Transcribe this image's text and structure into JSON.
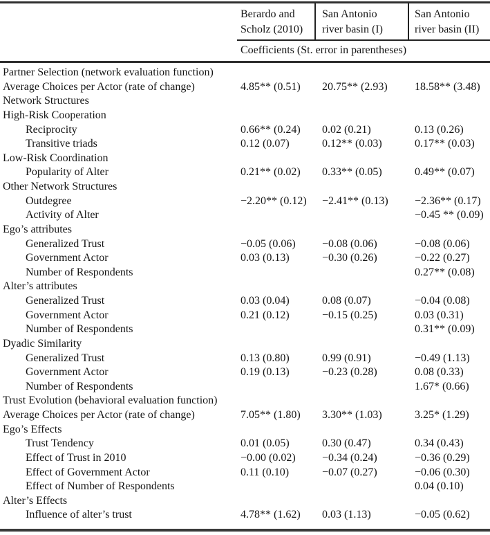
{
  "table": {
    "header": {
      "col1": "Berardo and\nScholz (2010)",
      "col2": "San Antonio\nriver basin (I)",
      "col3": "San Antonio\nriver basin (II)",
      "subheader": "Coefficients (St. error in parentheses)"
    },
    "rows": [
      {
        "label": "Partner Selection (network evaluation function)",
        "indent": 0,
        "c1": "",
        "c2": "",
        "c3": ""
      },
      {
        "label": "Average Choices per Actor (rate of change)",
        "indent": 0,
        "c1": "4.85** (0.51)",
        "c2": "20.75** (2.93)",
        "c3": "18.58** (3.48)"
      },
      {
        "label": "Network Structures",
        "indent": 0,
        "c1": "",
        "c2": "",
        "c3": ""
      },
      {
        "label": "High-Risk Cooperation",
        "indent": 0,
        "c1": "",
        "c2": "",
        "c3": ""
      },
      {
        "label": "Reciprocity",
        "indent": 1,
        "c1": "0.66** (0.24)",
        "c2": "0.02 (0.21)",
        "c3": "0.13 (0.26)"
      },
      {
        "label": "Transitive triads",
        "indent": 1,
        "c1": "0.12 (0.07)",
        "c2": "0.12** (0.03)",
        "c3": "0.17** (0.03)"
      },
      {
        "label": "Low-Risk Coordination",
        "indent": 0,
        "c1": "",
        "c2": "",
        "c3": ""
      },
      {
        "label": "Popularity of Alter",
        "indent": 1,
        "c1": "0.21** (0.02)",
        "c2": "0.33** (0.05)",
        "c3": "0.49** (0.07)"
      },
      {
        "label": "Other Network Structures",
        "indent": 0,
        "c1": "",
        "c2": "",
        "c3": ""
      },
      {
        "label": "Outdegree",
        "indent": 1,
        "c1": "−2.20** (0.12)",
        "c2": "−2.41** (0.13)",
        "c3": "−2.36** (0.17)"
      },
      {
        "label": "Activity of Alter",
        "indent": 1,
        "c1": "",
        "c2": "",
        "c3": "−0.45 ** (0.09)"
      },
      {
        "label": "Ego’s attributes",
        "indent": 0,
        "c1": "",
        "c2": "",
        "c3": ""
      },
      {
        "label": "Generalized Trust",
        "indent": 1,
        "c1": "−0.05 (0.06)",
        "c2": "−0.08 (0.06)",
        "c3": "−0.08 (0.06)"
      },
      {
        "label": "Government Actor",
        "indent": 1,
        "c1": "0.03 (0.13)",
        "c2": "−0.30 (0.26)",
        "c3": "−0.22 (0.27)"
      },
      {
        "label": "Number of Respondents",
        "indent": 1,
        "c1": "",
        "c2": "",
        "c3": "0.27** (0.08)"
      },
      {
        "label": "Alter’s attributes",
        "indent": 0,
        "c1": "",
        "c2": "",
        "c3": ""
      },
      {
        "label": "Generalized Trust",
        "indent": 1,
        "c1": "0.03 (0.04)",
        "c2": "0.08 (0.07)",
        "c3": "−0.04 (0.08)"
      },
      {
        "label": "Government Actor",
        "indent": 1,
        "c1": "0.21 (0.12)",
        "c2": "−0.15 (0.25)",
        "c3": "0.03 (0.31)"
      },
      {
        "label": "Number of Respondents",
        "indent": 1,
        "c1": "",
        "c2": "",
        "c3": "0.31** (0.09)"
      },
      {
        "label": "Dyadic Similarity",
        "indent": 0,
        "c1": "",
        "c2": "",
        "c3": ""
      },
      {
        "label": "Generalized Trust",
        "indent": 1,
        "c1": "0.13 (0.80)",
        "c2": "0.99 (0.91)",
        "c3": "−0.49 (1.13)"
      },
      {
        "label": "Government Actor",
        "indent": 1,
        "c1": "0.19 (0.13)",
        "c2": "−0.23 (0.28)",
        "c3": "0.08 (0.33)"
      },
      {
        "label": "Number of Respondents",
        "indent": 1,
        "c1": "",
        "c2": "",
        "c3": "1.67* (0.66)"
      },
      {
        "label": "Trust Evolution (behavioral evaluation function)",
        "indent": 0,
        "c1": "",
        "c2": "",
        "c3": ""
      },
      {
        "label": "Average Choices per Actor (rate of change)",
        "indent": 0,
        "c1": "7.05** (1.80)",
        "c2": "3.30** (1.03)",
        "c3": "3.25* (1.29)"
      },
      {
        "label": "Ego’s Effects",
        "indent": 0,
        "c1": "",
        "c2": "",
        "c3": ""
      },
      {
        "label": "Trust Tendency",
        "indent": 1,
        "c1": "0.01 (0.05)",
        "c2": "0.30 (0.47)",
        "c3": "0.34 (0.43)"
      },
      {
        "label": "Effect of Trust in 2010",
        "indent": 1,
        "c1": "−0.00 (0.02)",
        "c2": "−0.34 (0.24)",
        "c3": "−0.36 (0.29)"
      },
      {
        "label": "Effect of Government Actor",
        "indent": 1,
        "c1": "0.11 (0.10)",
        "c2": "−0.07 (0.27)",
        "c3": "−0.06 (0.30)"
      },
      {
        "label": "Effect of Number of Respondents",
        "indent": 1,
        "c1": "",
        "c2": "",
        "c3": "0.04 (0.10)"
      },
      {
        "label": "Alter’s Effects",
        "indent": 0,
        "c1": "",
        "c2": "",
        "c3": ""
      },
      {
        "label": "Influence of alter’s trust",
        "indent": 1,
        "c1": "4.78** (1.62)",
        "c2": "0.03 (1.13)",
        "c3": "−0.05 (0.62)"
      }
    ]
  }
}
